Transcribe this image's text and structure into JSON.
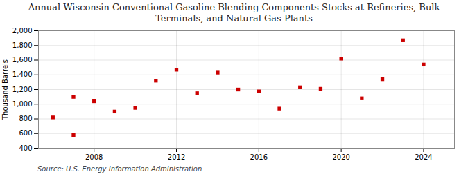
{
  "chart_data": {
    "type": "scatter",
    "title": "Annual Wisconsin Conventional Gasoline Blending Components Stocks at Refineries, Bulk\nTerminals, and Natural Gas Plants",
    "ylabel": "Thousand Barrels",
    "annotations": [
      "Source: U.S. Energy Information Administration"
    ],
    "x": [
      2006,
      2007,
      2007,
      2008,
      2009,
      2010,
      2011,
      2012,
      2013,
      2014,
      2015,
      2016,
      2017,
      2018,
      2019,
      2020,
      2021,
      2022,
      2023,
      2024
    ],
    "values": [
      820,
      1100,
      580,
      1040,
      900,
      950,
      1320,
      1470,
      1150,
      1430,
      1200,
      1175,
      940,
      1230,
      1210,
      1620,
      1080,
      1340,
      1870,
      1540
    ],
    "color": "#cc0000",
    "marker": "square",
    "xlim": [
      2005.3,
      2025.5
    ],
    "xticks": [
      2008,
      2012,
      2016,
      2020,
      2024
    ],
    "ylim": [
      400,
      2000
    ],
    "yticks": [
      400,
      600,
      800,
      {
        "value": 1000,
        "label": "1,000"
      },
      {
        "value": 1200,
        "label": "1,200"
      },
      {
        "value": 1400,
        "label": "1,400"
      },
      {
        "value": 1600,
        "label": "1,600"
      },
      {
        "value": 1800,
        "label": "1,800"
      },
      {
        "value": 2000,
        "label": "2,000"
      }
    ],
    "grid": true
  }
}
